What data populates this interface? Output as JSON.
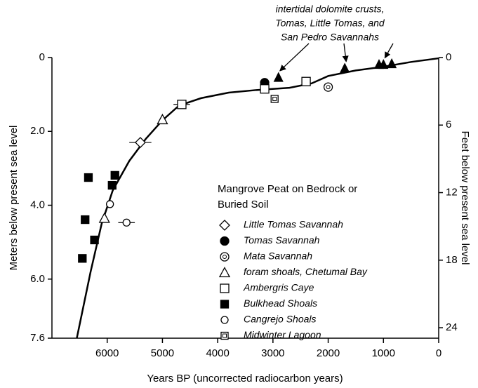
{
  "chart_data": {
    "type": "scatter",
    "xlabel": "Years BP (uncorrected radiocarbon years)",
    "ylabel": "Meters below present sea level",
    "y2label": "Feet below present sea level",
    "xlim": [
      7000,
      0
    ],
    "xticks": [
      6000,
      5000,
      4000,
      3000,
      2000,
      1000,
      0
    ],
    "ylim": [
      0,
      7.6
    ],
    "yticks": [
      0,
      {
        "value": 2,
        "label": "2.0"
      },
      {
        "value": 4,
        "label": "4.0"
      },
      {
        "value": 6,
        "label": "6.0"
      },
      {
        "value": 7.6,
        "label": "7.6"
      }
    ],
    "y2lim": [
      0,
      24.93
    ],
    "y2ticks": [
      0,
      6,
      12,
      18,
      24
    ],
    "legend_title": [
      "Mangrove Peat on Bedrock or",
      "Buried Soil"
    ],
    "annotation": [
      "intertidal dolomite crusts,",
      "Tomas, Little Tomas, and",
      "San Pedro Savannahs"
    ],
    "curve": {
      "x": [
        6550,
        6300,
        6100,
        5900,
        5600,
        5300,
        5000,
        4700,
        4300,
        3800,
        3300,
        2700,
        2300,
        2000,
        1500,
        1000,
        500,
        0
      ],
      "y": [
        7.6,
        5.8,
        4.5,
        3.6,
        2.8,
        2.2,
        1.7,
        1.3,
        1.1,
        0.95,
        0.88,
        0.82,
        0.7,
        0.5,
        0.35,
        0.25,
        0.12,
        0.02
      ]
    },
    "series": [
      {
        "name": "Little Tomas Savannah",
        "marker": "diamond",
        "x": [
          5400
        ],
        "values": [
          2.3
        ],
        "xerr": [
          200
        ]
      },
      {
        "name": "Tomas Savannah",
        "marker": "circle-filled",
        "x": [
          3150
        ],
        "values": [
          0.68
        ]
      },
      {
        "name": "Mata Savannah",
        "marker": "circle-double",
        "x": [
          2000
        ],
        "values": [
          0.8
        ]
      },
      {
        "name": "foram shoals, Chetumal Bay",
        "marker": "triangle-open",
        "x": [
          5000,
          6050
        ],
        "values": [
          1.68,
          4.35
        ]
      },
      {
        "name": "Ambergris Caye",
        "marker": "square-open",
        "x": [
          4650,
          3150,
          2400
        ],
        "values": [
          1.27,
          0.85,
          0.65
        ],
        "xerr": [
          150,
          null,
          null
        ]
      },
      {
        "name": "Bulkhead Shoals",
        "marker": "square-filled",
        "x": [
          6340,
          5860,
          5910,
          6400,
          6230,
          6450
        ],
        "values": [
          3.25,
          3.19,
          3.46,
          4.39,
          4.94,
          5.44
        ]
      },
      {
        "name": "Cangrejo Shoals",
        "marker": "circle-open",
        "x": [
          5950,
          5650
        ],
        "values": [
          3.97,
          4.47
        ],
        "xerr": [
          null,
          150
        ]
      },
      {
        "name": "Midwinter Lagoon",
        "marker": "square-double",
        "x": [
          2970
        ],
        "values": [
          1.12
        ]
      },
      {
        "marker": "triangle-filled",
        "x": [
          2900,
          1700,
          1080,
          1000,
          850
        ],
        "values": [
          0.55,
          0.3,
          0.2,
          0.2,
          0.18
        ]
      }
    ]
  }
}
